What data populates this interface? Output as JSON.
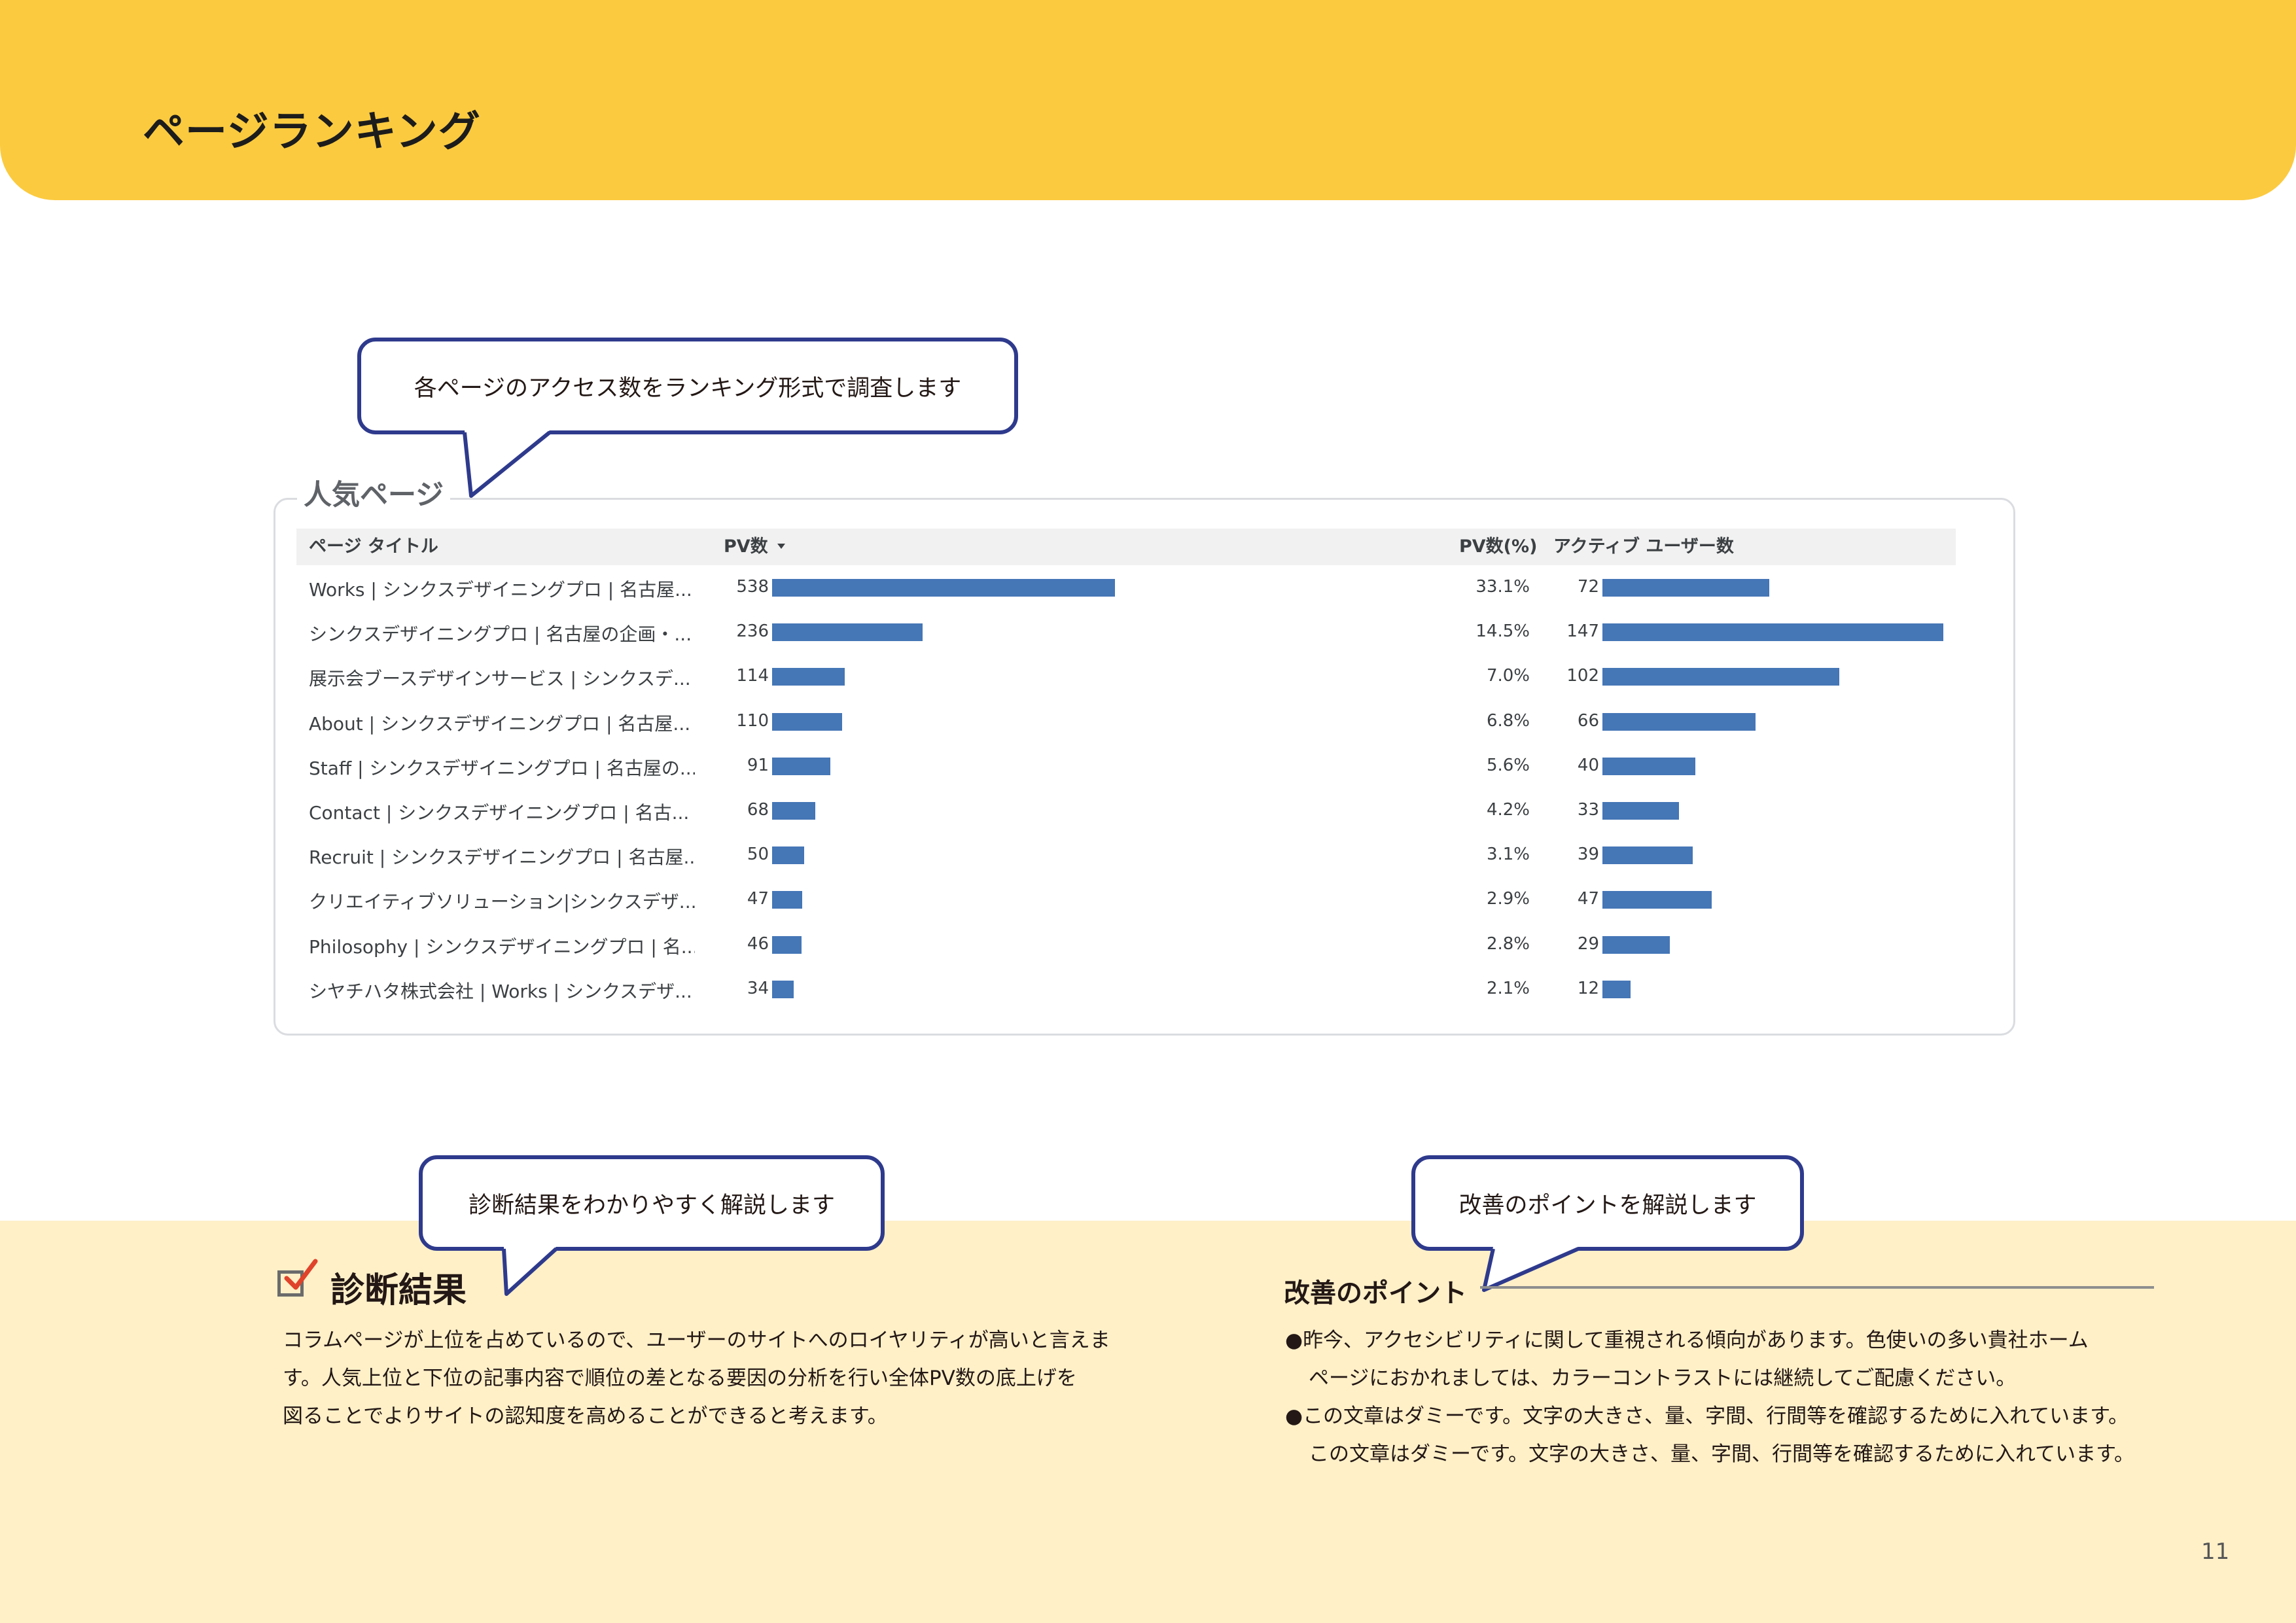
{
  "header": {
    "title": "ページランキング"
  },
  "callouts": {
    "ranking": "各ページのアクセス数をランキング形式で調査します",
    "diagnosis": "診断結果をわかりやすく解説します",
    "improvement": "改善のポイントを解説します"
  },
  "table": {
    "title": "人気ページ",
    "columns": {
      "page_title": "ページ タイトル",
      "pv": "PV数",
      "pv_pct": "PV数(%)",
      "active_users": "アクティブ ユーザー数"
    },
    "sort_indicator_icon": "sort-descending-icon",
    "bar_color": "#4576b6",
    "max_pv": 538,
    "max_users": 147,
    "rows": [
      {
        "title": "Works | シンクスデザイニングプロ | 名古屋...",
        "pv": "538",
        "pv_pct": "33.1%",
        "users": "72"
      },
      {
        "title": "シンクスデザイニングプロ | 名古屋の企画・...",
        "pv": "236",
        "pv_pct": "14.5%",
        "users": "147"
      },
      {
        "title": "展示会ブースデザインサービス | シンクスデ...",
        "pv": "114",
        "pv_pct": "7.0%",
        "users": "102"
      },
      {
        "title": "About | シンクスデザイニングプロ | 名古屋...",
        "pv": "110",
        "pv_pct": "6.8%",
        "users": "66"
      },
      {
        "title": "Staff | シンクスデザイニングプロ | 名古屋の...",
        "pv": "91",
        "pv_pct": "5.6%",
        "users": "40"
      },
      {
        "title": "Contact | シンクスデザイニングプロ | 名古...",
        "pv": "68",
        "pv_pct": "4.2%",
        "users": "33"
      },
      {
        "title": "Recruit | シンクスデザイニングプロ | 名古屋...",
        "pv": "50",
        "pv_pct": "3.1%",
        "users": "39"
      },
      {
        "title": "クリエイティブソリューション|シンクスデザ...",
        "pv": "47",
        "pv_pct": "2.9%",
        "users": "47"
      },
      {
        "title": "Philosophy | シンクスデザイニングプロ | 名...",
        "pv": "46",
        "pv_pct": "2.8%",
        "users": "29"
      },
      {
        "title": "シヤチハタ株式会社 | Works | シンクスデザ...",
        "pv": "34",
        "pv_pct": "2.1%",
        "users": "12"
      }
    ]
  },
  "diagnosis": {
    "title": "診断結果",
    "icon": "checkbox-checked-icon",
    "lines": [
      "コラムページが上位を占めているので、ユーザーのサイトへのロイヤリティが高いと言えま",
      "す。人気上位と下位の記事内容で順位の差となる要因の分析を行い全体PV数の底上げを",
      "図ることでよりサイトの認知度を高めることができると考えます。"
    ]
  },
  "improvement": {
    "title": "改善のポイント",
    "bullet": "●",
    "items": [
      {
        "line1": "昨今、アクセシビリティに関して重視される傾向があります。色使いの多い貴社ホーム",
        "line2": "ページにおかれましては、カラーコントラストには継続してご配慮ください。"
      },
      {
        "line1": "この文章はダミーです。文字の大きさ、量、字間、行間等を確認するために入れています。",
        "line2": "この文章はダミーです。文字の大きさ、量、字間、行間等を確認するために入れています。"
      }
    ]
  },
  "footer": {
    "page_number": "11"
  },
  "colors": {
    "header_yellow": "#fbca3f",
    "bottom_cream": "#fff0c8",
    "bubble_border": "#2e3a8c",
    "check_red": "#e0432b"
  }
}
